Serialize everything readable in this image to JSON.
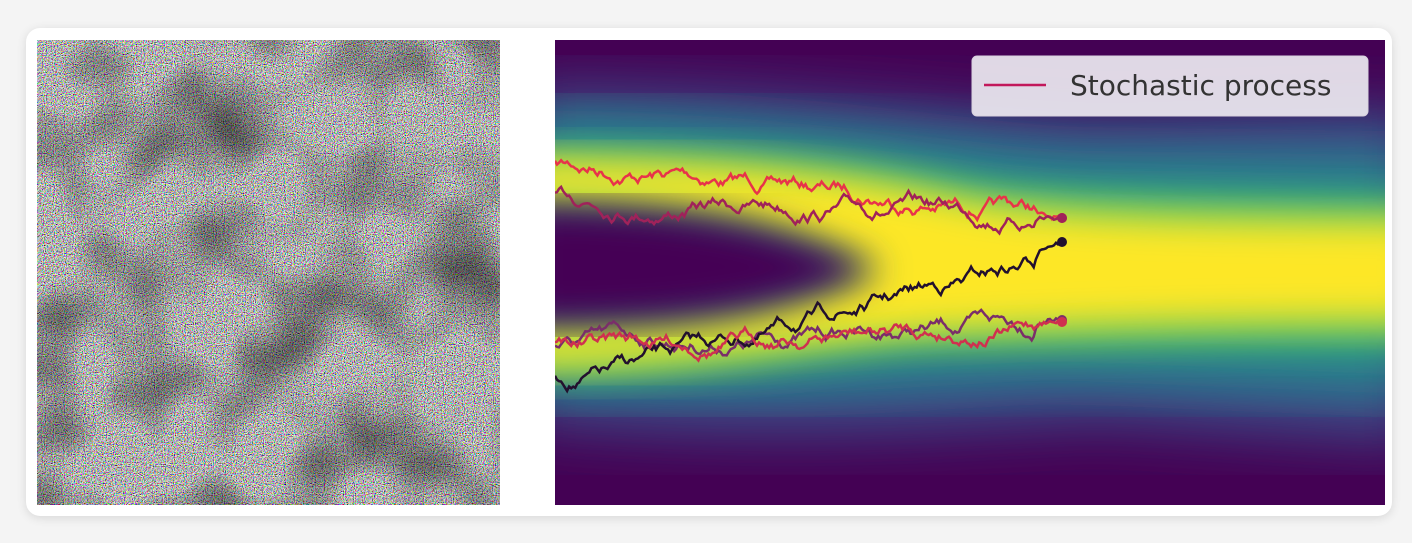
{
  "legend": {
    "label": "Stochastic process"
  }
}
